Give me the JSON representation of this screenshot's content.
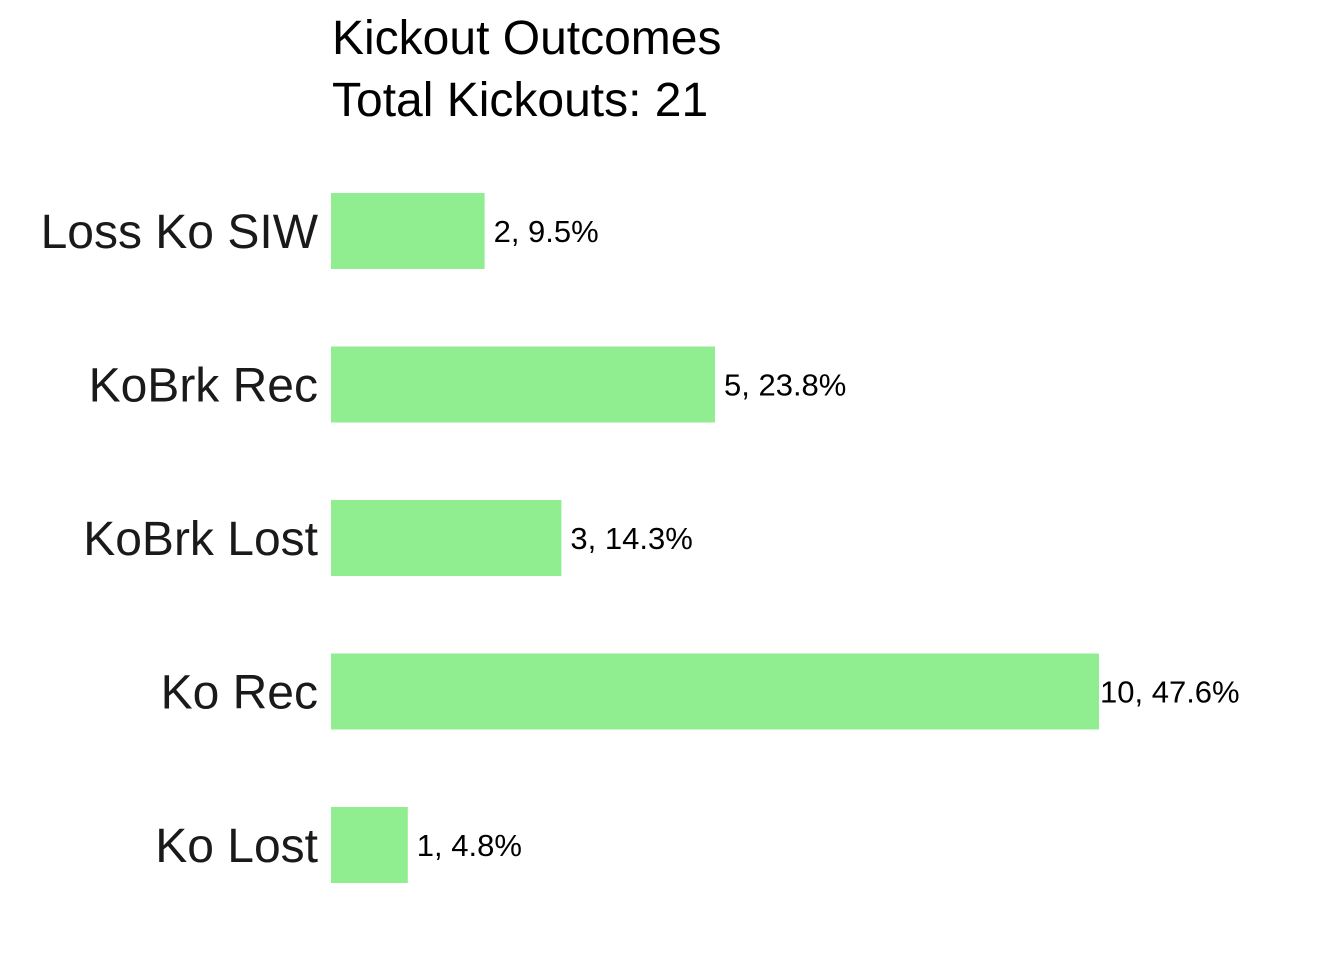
{
  "chart_data": {
    "type": "bar",
    "orientation": "horizontal",
    "title": "Kickout Outcomes",
    "subtitle": "Total Kickouts: 21",
    "categories": [
      "Loss Ko SIW",
      "KoBrk Rec",
      "KoBrk Lost",
      "Ko Rec",
      "Ko Lost"
    ],
    "values": [
      2,
      5,
      3,
      10,
      1
    ],
    "data_labels": [
      "2, 9.5%",
      "5, 23.8%",
      "3, 14.3%",
      "10, 47.6%",
      "1, 4.8%"
    ],
    "bar_color": "#90EE90",
    "xlim": [
      0,
      10
    ],
    "grid": false,
    "axes_visible": false,
    "legend": "none"
  }
}
